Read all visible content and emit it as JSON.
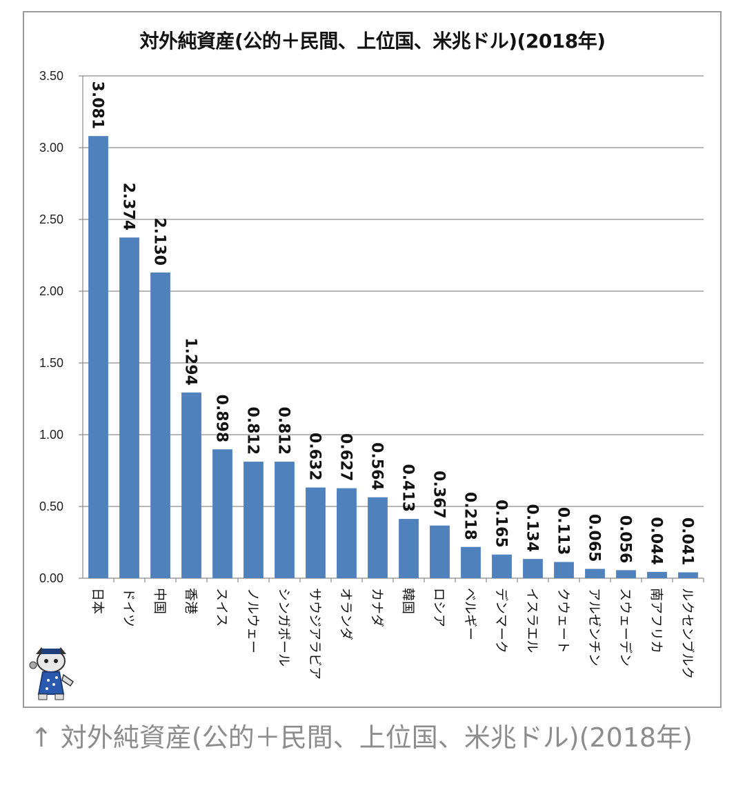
{
  "caption": "↑ 対外純資産(公的＋民間、上位国、米兆ドル)(2018年)",
  "chart_data": {
    "type": "bar",
    "title": "対外純資産(公的＋民間、上位国、米兆ドル)(2018年)",
    "categories": [
      "日本",
      "ドイツ",
      "中国",
      "香港",
      "スイス",
      "ノルウェー",
      "シンガポール",
      "サウジアラビア",
      "オランダ",
      "カナダ",
      "韓国",
      "ロシア",
      "ベルギー",
      "デンマーク",
      "イスラエル",
      "クウェート",
      "アルゼンチン",
      "スウェーデン",
      "南アフリカ",
      "ルクセンブルク"
    ],
    "values": [
      3.081,
      2.374,
      2.13,
      1.294,
      0.898,
      0.812,
      0.812,
      0.632,
      0.627,
      0.564,
      0.413,
      0.367,
      0.218,
      0.165,
      0.134,
      0.113,
      0.065,
      0.056,
      0.044,
      0.041
    ],
    "value_labels": [
      "3.081",
      "2.374",
      "2.130",
      "1.294",
      "0.898",
      "0.812",
      "0.812",
      "0.632",
      "0.627",
      "0.564",
      "0.413",
      "0.367",
      "0.218",
      "0.165",
      "0.134",
      "0.113",
      "0.065",
      "0.056",
      "0.044",
      "0.041"
    ],
    "yticks": [
      "0.00",
      "0.50",
      "1.00",
      "1.50",
      "2.00",
      "2.50",
      "3.00",
      "3.50"
    ],
    "ylim": [
      0,
      3.5
    ],
    "xlabel": "",
    "ylabel": "",
    "grid": true,
    "bar_color": "#4f81bd"
  }
}
